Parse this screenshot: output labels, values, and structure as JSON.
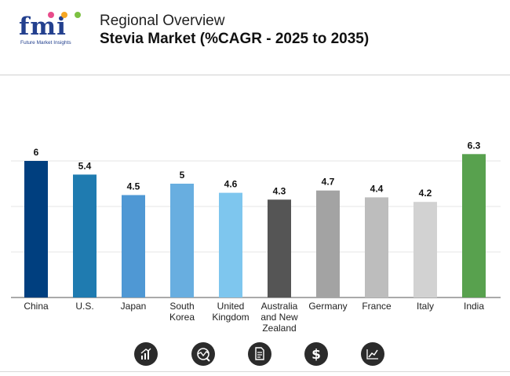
{
  "brand": {
    "logo_text": "fmi",
    "tagline": "Future Market Insights",
    "dot_colors": [
      "#e84c8b",
      "#f5a623",
      "#7cc142"
    ]
  },
  "header": {
    "title": "Regional Overview",
    "subtitle": "Stevia Market (%CAGR - 2025 to 2035)"
  },
  "chart_data": {
    "type": "bar",
    "title": "Stevia Market (%CAGR - 2025 to 2035)",
    "xlabel": "",
    "ylabel": "",
    "ylim": [
      0,
      6.5
    ],
    "grid": true,
    "gridlines": [
      2,
      4,
      6
    ],
    "categories": [
      [
        "China"
      ],
      [
        "U.S."
      ],
      [
        "Japan"
      ],
      [
        "South",
        "Korea"
      ],
      [
        "United",
        "Kingdom"
      ],
      [
        "Australia",
        "and New",
        "Zealand"
      ],
      [
        "Germany"
      ],
      [
        "France"
      ],
      [
        "Italy"
      ],
      [
        "India"
      ]
    ],
    "values": [
      6,
      5.4,
      4.5,
      5,
      4.6,
      4.3,
      4.7,
      4.4,
      4.2,
      6.3
    ],
    "value_labels": [
      "6",
      "5.4",
      "4.5",
      "5",
      "4.6",
      "4.3",
      "4.7",
      "4.4",
      "4.2",
      "6.3"
    ],
    "colors": [
      "#003f7f",
      "#1f7bb0",
      "#4f98d4",
      "#68aee0",
      "#7ec6ee",
      "#555555",
      "#a3a3a3",
      "#bdbdbd",
      "#d2d2d2",
      "#58a14e"
    ]
  },
  "footer_icons": [
    "growth-chart-icon",
    "analysis-chart-icon",
    "report-document-icon",
    "dollar-icon",
    "trend-line-icon"
  ]
}
